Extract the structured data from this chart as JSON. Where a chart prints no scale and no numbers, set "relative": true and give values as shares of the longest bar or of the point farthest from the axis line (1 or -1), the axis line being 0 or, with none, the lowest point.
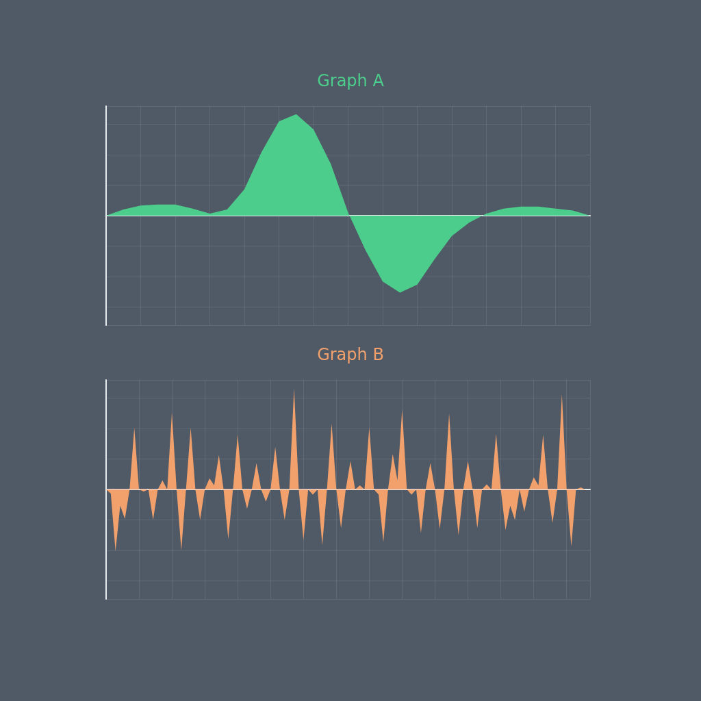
{
  "chart_data": [
    {
      "type": "area",
      "title": "Graph A",
      "relative": true,
      "grid": true,
      "categories": [
        null,
        null,
        null,
        null,
        null,
        null,
        null,
        null,
        null,
        null,
        null,
        null,
        null,
        null,
        null,
        null,
        null,
        null,
        null,
        null,
        null,
        null,
        null,
        null,
        null,
        null,
        null,
        null,
        null
      ],
      "series": [
        {
          "color": "#4ccd8b",
          "values": [
            0,
            0.06,
            0.1,
            0.11,
            0.11,
            0.07,
            0.02,
            0.06,
            0.26,
            0.63,
            0.93,
            1,
            0.85,
            0.51,
            0.03,
            -0.34,
            -0.65,
            -0.76,
            -0.68,
            -0.43,
            -0.2,
            -0.07,
            0.02,
            0.07,
            0.09,
            0.09,
            0.07,
            0.05,
            0
          ]
        }
      ]
    },
    {
      "type": "area",
      "title": "Graph B",
      "relative": true,
      "grid": true,
      "categories": [
        null,
        null,
        null,
        null,
        null,
        null,
        null,
        null,
        null,
        null,
        null,
        null,
        null,
        null,
        null,
        null,
        null,
        null,
        null,
        null,
        null,
        null,
        null,
        null,
        null,
        null,
        null,
        null,
        null,
        null,
        null,
        null,
        null,
        null,
        null,
        null,
        null,
        null,
        null,
        null,
        null,
        null,
        null,
        null,
        null,
        null,
        null,
        null,
        null,
        null,
        null,
        null,
        null,
        null,
        null,
        null,
        null,
        null,
        null,
        null,
        null,
        null,
        null,
        null,
        null,
        null,
        null,
        null,
        null,
        null,
        null,
        null,
        null,
        null,
        null,
        null,
        null,
        null,
        null,
        null,
        null,
        null,
        null,
        null,
        null,
        null,
        null,
        null,
        null,
        null,
        null,
        null,
        null,
        null,
        null,
        null,
        null,
        null,
        null,
        null,
        null,
        null,
        null,
        null
      ],
      "series": [
        {
          "color": "#f2a06c",
          "values": [
            0,
            -0.04,
            -0.61,
            -0.16,
            -0.29,
            0,
            0.61,
            0,
            -0.02,
            0,
            -0.3,
            0,
            0.09,
            0,
            0.76,
            0,
            -0.6,
            0,
            0.61,
            0,
            -0.3,
            0,
            0.11,
            0.04,
            0.34,
            0,
            -0.49,
            0,
            0.54,
            0,
            -0.19,
            0,
            0.26,
            0,
            -0.12,
            0,
            0.42,
            0,
            -0.3,
            0,
            1,
            0,
            -0.5,
            0,
            -0.05,
            0,
            -0.55,
            0,
            0.65,
            0,
            -0.38,
            0,
            0.28,
            0,
            0.04,
            0,
            0.61,
            0,
            -0.05,
            -0.52,
            0,
            0.35,
            0.09,
            0.79,
            0,
            -0.05,
            0,
            -0.43,
            0,
            0.26,
            0,
            -0.39,
            0,
            0.75,
            0,
            -0.45,
            0,
            0.28,
            0,
            -0.38,
            0,
            0.05,
            0,
            0.55,
            0,
            -0.4,
            -0.16,
            -0.3,
            0,
            -0.22,
            0,
            0.12,
            0.04,
            0.54,
            0,
            -0.33,
            0,
            0.94,
            0,
            -0.56,
            0,
            0.02,
            0,
            0
          ]
        }
      ]
    }
  ]
}
